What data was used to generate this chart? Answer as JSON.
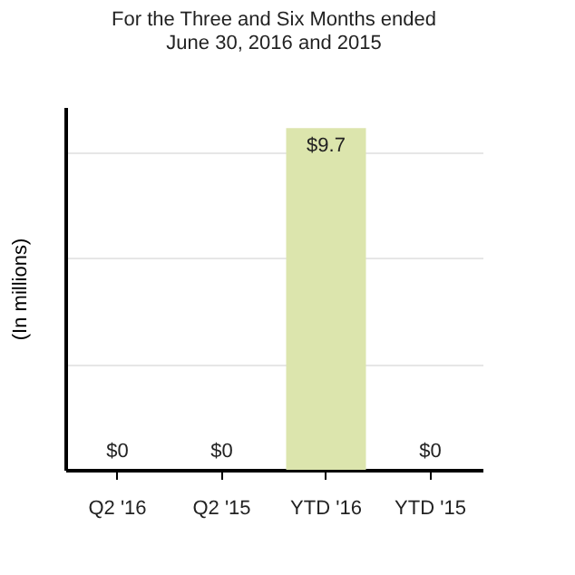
{
  "chart_data": {
    "type": "bar",
    "title": [
      "For the Three and Six Months ended",
      "June 30, 2016 and 2015"
    ],
    "ylabel": "(In millions)",
    "categories": [
      "Q2 '16",
      "Q2 '15",
      "YTD '16",
      "YTD '15"
    ],
    "values": [
      0,
      0,
      9.7,
      0
    ],
    "value_labels": [
      "$0",
      "$0",
      "$9.7",
      "$0"
    ],
    "color": "#dce5ad",
    "ylim": [
      0,
      10.3
    ],
    "yticks": [
      {
        "value": 3,
        "label": null
      },
      {
        "value": 6,
        "label": null
      },
      {
        "value": 9,
        "label": null
      }
    ],
    "grid": "y",
    "tick_labels": "x"
  }
}
